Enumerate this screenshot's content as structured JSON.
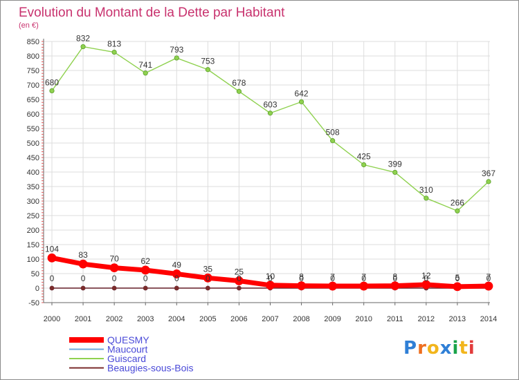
{
  "chart_data": {
    "type": "line",
    "title": "Evolution du Montant de la Dette par Habitant",
    "subtitle": "(en €)",
    "x": [
      "2000",
      "2001",
      "2002",
      "2003",
      "2004",
      "2005",
      "2006",
      "2007",
      "2008",
      "2009",
      "2010",
      "2011",
      "2012",
      "2013",
      "2014"
    ],
    "ylim": [
      -50,
      850
    ],
    "yticks": [
      -50,
      0,
      50,
      100,
      150,
      200,
      250,
      300,
      350,
      400,
      450,
      500,
      550,
      600,
      650,
      700,
      750,
      800,
      850
    ],
    "grid": true,
    "legend_position": "bottom-left",
    "series": [
      {
        "name": "QUESMY",
        "color": "#ff0000",
        "values": [
          104,
          83,
          70,
          62,
          49,
          35,
          25,
          10,
          8,
          7,
          7,
          8,
          12,
          5,
          7
        ]
      },
      {
        "name": "Maucourt",
        "color": "#6fa8dc",
        "values": [
          0,
          0,
          0,
          0,
          0,
          0,
          0,
          0,
          0,
          0,
          0,
          0,
          0,
          0,
          0
        ]
      },
      {
        "name": "Guiscard",
        "color": "#8fd14f",
        "values": [
          680,
          832,
          813,
          741,
          793,
          753,
          678,
          603,
          642,
          508,
          425,
          399,
          310,
          266,
          367
        ]
      },
      {
        "name": "Beaugies-sous-Bois",
        "color": "#7a2b2b",
        "values": [
          0,
          0,
          0,
          0,
          0,
          0,
          0,
          0,
          0,
          0,
          0,
          0,
          0,
          0,
          0
        ]
      }
    ]
  },
  "logo": {
    "letters": [
      "P",
      "r",
      "o",
      "x",
      "i",
      "t",
      "i"
    ],
    "colors": [
      "#2f7fd6",
      "#ee6f20",
      "#f2b51c",
      "#2f7fd6",
      "#1aa34a",
      "#f2b51c",
      "#e23b3b"
    ]
  }
}
